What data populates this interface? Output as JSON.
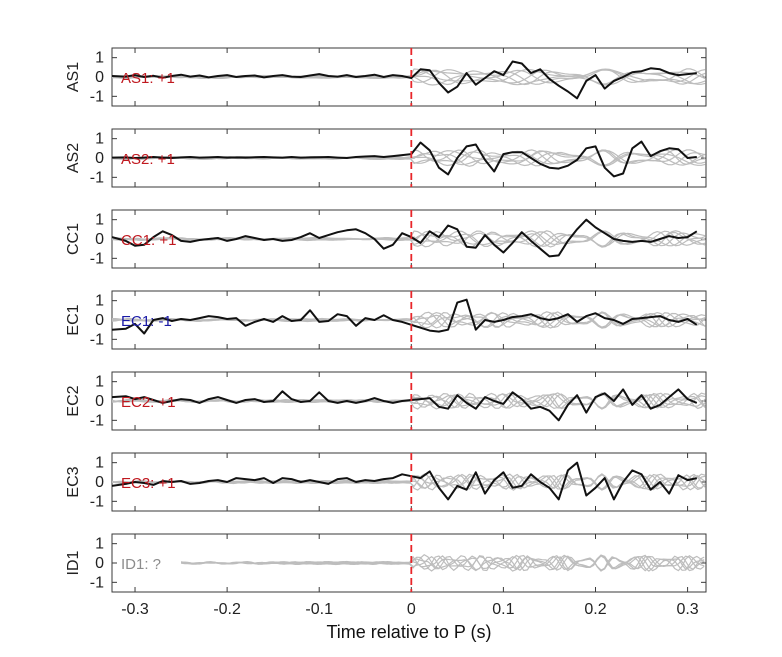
{
  "chart_data": {
    "type": "line",
    "xlabel": "Time relative to P (s)",
    "xlim": [
      -0.325,
      0.32
    ],
    "ylim": [
      -1.5,
      1.5
    ],
    "x_ticks": [
      -0.3,
      -0.2,
      -0.1,
      0,
      0.1,
      0.2,
      0.3
    ],
    "x_tick_labels": [
      "-0.3",
      "-0.2",
      "-0.1",
      "0",
      "0.1",
      "0.2",
      "0.3"
    ],
    "y_ticks": [
      1,
      0,
      -1
    ],
    "y_tick_labels": [
      "1",
      "0",
      "-1"
    ],
    "marker_line": {
      "x": 0,
      "color": "#e8262a",
      "style": "dashed"
    },
    "colors": {
      "positive": "#c0181f",
      "negative": "#1a1aa6",
      "unknown": "#8c8c8c",
      "trace": "#111111",
      "reference": "#bdbdbd"
    },
    "panels": [
      {
        "station": "AS1",
        "label": "AS1: +1",
        "polarity": "positive",
        "series": [
          {
            "x": [
              -0.325,
              -0.31,
              -0.3,
              -0.29,
              -0.28,
              -0.27,
              -0.26,
              -0.25,
              -0.24,
              -0.23,
              -0.22,
              -0.21,
              -0.2,
              -0.19,
              -0.18,
              -0.17,
              -0.16,
              -0.15,
              -0.14,
              -0.13,
              -0.12,
              -0.11,
              -0.1,
              -0.09,
              -0.08,
              -0.07,
              -0.06,
              -0.05,
              -0.04,
              -0.03,
              -0.02,
              -0.01,
              0,
              0.01,
              0.02,
              0.03,
              0.04,
              0.05,
              0.06,
              0.07,
              0.08,
              0.09,
              0.1,
              0.11,
              0.12,
              0.13,
              0.14,
              0.15,
              0.16,
              0.17,
              0.18,
              0.19,
              0.2,
              0.21,
              0.22,
              0.23,
              0.24,
              0.25,
              0.26,
              0.27,
              0.28,
              0.29,
              0.3,
              0.31
            ],
            "y": [
              0.05,
              0.02,
              0.1,
              0.0,
              0.06,
              -0.04,
              0.05,
              0.12,
              0.02,
              0.08,
              -0.02,
              0.05,
              0.1,
              0.0,
              0.05,
              0.08,
              -0.02,
              0.05,
              0.1,
              0.02,
              0.0,
              0.08,
              0.15,
              0.05,
              0.02,
              0.1,
              0.0,
              0.05,
              0.12,
              0.0,
              0.1,
              0.05,
              -0.05,
              0.4,
              0.35,
              -0.3,
              -0.8,
              -0.5,
              0.2,
              -0.4,
              -0.05,
              0.3,
              0.1,
              0.8,
              0.7,
              0.2,
              0.4,
              -0.1,
              -0.45,
              -0.75,
              -1.1,
              -0.2,
              0.1,
              -0.6,
              -0.2,
              0.0,
              0.25,
              0.3,
              0.45,
              0.4,
              0.2,
              0.1,
              0.15,
              0.2
            ]
          }
        ]
      },
      {
        "station": "AS2",
        "label": "AS2: +1",
        "polarity": "positive",
        "series": [
          {
            "x": [
              -0.325,
              -0.31,
              -0.3,
              -0.29,
              -0.28,
              -0.27,
              -0.26,
              -0.25,
              -0.24,
              -0.23,
              -0.22,
              -0.21,
              -0.2,
              -0.19,
              -0.18,
              -0.17,
              -0.16,
              -0.15,
              -0.14,
              -0.13,
              -0.12,
              -0.11,
              -0.1,
              -0.09,
              -0.08,
              -0.07,
              -0.06,
              -0.05,
              -0.04,
              -0.03,
              -0.02,
              -0.01,
              0,
              0.01,
              0.02,
              0.03,
              0.04,
              0.05,
              0.06,
              0.07,
              0.08,
              0.09,
              0.1,
              0.11,
              0.12,
              0.13,
              0.14,
              0.15,
              0.16,
              0.17,
              0.18,
              0.19,
              0.2,
              0.21,
              0.22,
              0.23,
              0.24,
              0.25,
              0.26,
              0.27,
              0.28,
              0.29,
              0.3,
              0.31
            ],
            "y": [
              0.02,
              0.03,
              0.0,
              0.02,
              0.05,
              0.02,
              0.0,
              0.03,
              0.05,
              0.02,
              0.03,
              0.05,
              0.02,
              0.03,
              0.02,
              0.04,
              0.05,
              0.03,
              0.02,
              0.05,
              0.02,
              0.03,
              0.04,
              0.05,
              0.02,
              0.0,
              0.05,
              0.08,
              0.1,
              0.05,
              0.1,
              0.15,
              0.2,
              0.8,
              0.4,
              -0.5,
              -0.85,
              0.0,
              0.6,
              0.7,
              -0.1,
              -0.7,
              0.2,
              0.3,
              0.3,
              0.0,
              -0.3,
              -0.5,
              -0.55,
              -0.4,
              -0.1,
              0.5,
              0.6,
              -0.5,
              -0.95,
              -0.8,
              0.5,
              0.85,
              0.1,
              0.35,
              0.5,
              0.45,
              0.0,
              0.05
            ]
          }
        ]
      },
      {
        "station": "CC1",
        "label": "CC1: +1",
        "polarity": "positive",
        "series": [
          {
            "x": [
              -0.325,
              -0.31,
              -0.3,
              -0.29,
              -0.28,
              -0.27,
              -0.26,
              -0.25,
              -0.24,
              -0.23,
              -0.22,
              -0.21,
              -0.2,
              -0.19,
              -0.18,
              -0.17,
              -0.16,
              -0.15,
              -0.14,
              -0.13,
              -0.12,
              -0.11,
              -0.1,
              -0.09,
              -0.08,
              -0.07,
              -0.06,
              -0.05,
              -0.04,
              -0.03,
              -0.02,
              -0.01,
              0,
              0.01,
              0.02,
              0.03,
              0.04,
              0.05,
              0.06,
              0.07,
              0.08,
              0.09,
              0.1,
              0.11,
              0.12,
              0.13,
              0.14,
              0.15,
              0.16,
              0.17,
              0.18,
              0.19,
              0.2,
              0.21,
              0.22,
              0.23,
              0.24,
              0.25,
              0.26,
              0.27,
              0.28,
              0.29,
              0.3,
              0.31
            ],
            "y": [
              0.1,
              -0.1,
              -0.35,
              -0.3,
              0.1,
              0.4,
              0.2,
              -0.1,
              -0.15,
              -0.05,
              0.0,
              0.05,
              -0.1,
              0.0,
              0.15,
              0.05,
              -0.05,
              0.0,
              -0.1,
              -0.05,
              0.1,
              0.3,
              0.05,
              0.2,
              0.35,
              0.45,
              0.5,
              0.3,
              0.0,
              -0.5,
              -0.3,
              0.3,
              0.1,
              -0.2,
              0.4,
              0.1,
              0.7,
              0.5,
              -0.4,
              -0.45,
              0.2,
              -0.3,
              -0.7,
              -0.2,
              0.35,
              -0.1,
              -0.5,
              -0.9,
              -0.85,
              -0.1,
              0.5,
              1.0,
              0.6,
              0.3,
              0.0,
              -0.1,
              -0.15,
              -0.1,
              -0.15,
              0.0,
              0.15,
              0.05,
              0.1,
              0.4
            ]
          }
        ]
      },
      {
        "station": "EC1",
        "label": "EC1: -1",
        "polarity": "negative",
        "series": [
          {
            "x": [
              -0.325,
              -0.31,
              -0.3,
              -0.29,
              -0.28,
              -0.27,
              -0.26,
              -0.25,
              -0.24,
              -0.23,
              -0.22,
              -0.21,
              -0.2,
              -0.19,
              -0.18,
              -0.17,
              -0.16,
              -0.15,
              -0.14,
              -0.13,
              -0.12,
              -0.11,
              -0.1,
              -0.09,
              -0.08,
              -0.07,
              -0.06,
              -0.05,
              -0.04,
              -0.03,
              -0.02,
              -0.01,
              0,
              0.01,
              0.02,
              0.03,
              0.04,
              0.05,
              0.06,
              0.07,
              0.08,
              0.09,
              0.1,
              0.11,
              0.12,
              0.13,
              0.14,
              0.15,
              0.16,
              0.17,
              0.18,
              0.19,
              0.2,
              0.21,
              0.22,
              0.23,
              0.24,
              0.25,
              0.26,
              0.27,
              0.28,
              0.29,
              0.3,
              0.31
            ],
            "y": [
              -0.5,
              -0.45,
              -0.2,
              -0.7,
              0.0,
              0.1,
              -0.05,
              0.05,
              0.0,
              0.1,
              0.2,
              0.15,
              0.05,
              0.1,
              -0.3,
              -0.1,
              0.05,
              -0.1,
              0.2,
              -0.05,
              0.0,
              0.5,
              -0.1,
              -0.05,
              0.3,
              0.2,
              -0.3,
              0.1,
              0.0,
              0.25,
              0.0,
              -0.1,
              -0.25,
              -0.4,
              -0.55,
              -0.6,
              -0.5,
              0.9,
              1.05,
              -0.5,
              0.0,
              -0.1,
              0.0,
              0.15,
              0.2,
              0.3,
              0.1,
              0.0,
              0.1,
              0.3,
              -0.1,
              0.2,
              0.35,
              0.1,
              0.0,
              -0.2,
              0.05,
              0.1,
              0.15,
              0.2,
              0.0,
              -0.1,
              0.05,
              -0.25
            ]
          }
        ]
      },
      {
        "station": "EC2",
        "label": "EC2: +1",
        "polarity": "positive",
        "series": [
          {
            "x": [
              -0.325,
              -0.31,
              -0.3,
              -0.29,
              -0.28,
              -0.27,
              -0.26,
              -0.25,
              -0.24,
              -0.23,
              -0.22,
              -0.21,
              -0.2,
              -0.19,
              -0.18,
              -0.17,
              -0.16,
              -0.15,
              -0.14,
              -0.13,
              -0.12,
              -0.11,
              -0.1,
              -0.09,
              -0.08,
              -0.07,
              -0.06,
              -0.05,
              -0.04,
              -0.03,
              -0.02,
              -0.01,
              0,
              0.01,
              0.02,
              0.03,
              0.04,
              0.05,
              0.06,
              0.07,
              0.08,
              0.09,
              0.1,
              0.11,
              0.12,
              0.13,
              0.14,
              0.15,
              0.16,
              0.17,
              0.18,
              0.19,
              0.2,
              0.21,
              0.22,
              0.23,
              0.24,
              0.25,
              0.26,
              0.27,
              0.28,
              0.29,
              0.3,
              0.31
            ],
            "y": [
              0.2,
              0.25,
              0.1,
              0.2,
              0.05,
              -0.1,
              0.0,
              0.1,
              0.05,
              -0.1,
              0.1,
              0.2,
              0.05,
              -0.1,
              0.05,
              0.1,
              -0.05,
              0.0,
              0.5,
              0.1,
              -0.05,
              0.0,
              0.45,
              0.0,
              -0.1,
              0.0,
              -0.1,
              0.0,
              0.15,
              0.0,
              -0.1,
              0.0,
              0.05,
              0.1,
              0.15,
              -0.3,
              -0.4,
              0.3,
              -0.1,
              -0.4,
              0.2,
              0.0,
              -0.15,
              0.45,
              0.1,
              -0.4,
              -0.3,
              -0.5,
              -1.0,
              -0.2,
              0.3,
              -0.6,
              0.2,
              0.4,
              0.0,
              0.6,
              -0.2,
              0.3,
              -0.4,
              -0.2,
              0.2,
              0.6,
              0.1,
              -0.1
            ]
          }
        ]
      },
      {
        "station": "EC3",
        "label": "EC3: +1",
        "polarity": "positive",
        "series": [
          {
            "x": [
              -0.325,
              -0.31,
              -0.3,
              -0.29,
              -0.28,
              -0.27,
              -0.26,
              -0.25,
              -0.24,
              -0.23,
              -0.22,
              -0.21,
              -0.2,
              -0.19,
              -0.18,
              -0.17,
              -0.16,
              -0.15,
              -0.14,
              -0.13,
              -0.12,
              -0.11,
              -0.1,
              -0.09,
              -0.08,
              -0.07,
              -0.06,
              -0.05,
              -0.04,
              -0.03,
              -0.02,
              -0.01,
              0,
              0.01,
              0.02,
              0.03,
              0.04,
              0.05,
              0.06,
              0.07,
              0.08,
              0.09,
              0.1,
              0.11,
              0.12,
              0.13,
              0.14,
              0.15,
              0.16,
              0.17,
              0.18,
              0.19,
              0.2,
              0.21,
              0.22,
              0.23,
              0.24,
              0.25,
              0.26,
              0.27,
              0.28,
              0.29,
              0.3,
              0.31
            ],
            "y": [
              -0.2,
              -0.1,
              0.0,
              -0.05,
              -0.15,
              0.05,
              0.0,
              0.05,
              -0.1,
              -0.05,
              0.05,
              0.1,
              0.0,
              0.2,
              0.15,
              0.1,
              0.2,
              -0.05,
              0.2,
              0.15,
              0.0,
              0.1,
              0.0,
              -0.1,
              0.15,
              0.2,
              0.0,
              0.1,
              0.05,
              0.15,
              0.2,
              0.4,
              0.3,
              0.2,
              0.55,
              -0.3,
              -0.9,
              -0.2,
              -0.4,
              0.5,
              -0.6,
              0.1,
              0.5,
              -0.3,
              -0.2,
              0.4,
              0.0,
              -0.3,
              -0.9,
              0.6,
              1.0,
              -0.7,
              -0.3,
              0.2,
              -0.9,
              0.0,
              0.6,
              0.4,
              -0.4,
              0.0,
              -0.6,
              0.35,
              0.1,
              0.2
            ]
          }
        ]
      },
      {
        "station": "ID1",
        "label": "ID1: ?",
        "polarity": "unknown",
        "series": []
      }
    ]
  }
}
